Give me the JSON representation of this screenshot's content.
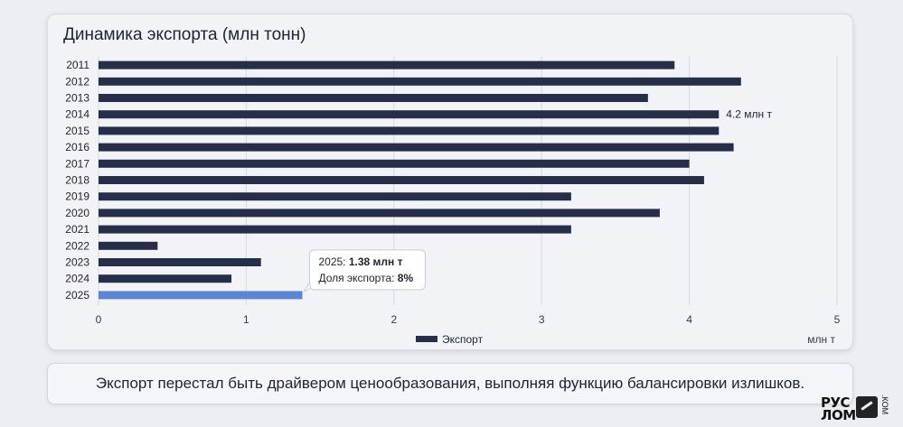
{
  "chart_data": {
    "type": "bar",
    "orientation": "horizontal",
    "title": "Динамика экспорта (млн тонн)",
    "categories": [
      "2011",
      "2012",
      "2013",
      "2014",
      "2015",
      "2016",
      "2017",
      "2018",
      "2019",
      "2020",
      "2021",
      "2022",
      "2023",
      "2024",
      "2025"
    ],
    "series": [
      {
        "name": "Экспорт",
        "values": [
          3.9,
          4.35,
          3.72,
          4.2,
          4.2,
          4.3,
          4.0,
          4.1,
          3.2,
          3.8,
          3.2,
          0.4,
          1.1,
          0.9,
          1.38
        ]
      }
    ],
    "xlim": [
      0,
      5
    ],
    "xticks": [
      "0",
      "1",
      "2",
      "3",
      "4",
      "5"
    ],
    "xunit": "млн т",
    "grid": true,
    "legend_position": "bottom-center",
    "highlight_index": 14,
    "data_label": {
      "category": "2014",
      "text": "4.2 млн т"
    },
    "tooltip": {
      "category": "2025",
      "line1_prefix": "2025: ",
      "line1_value": "1.38 млн т",
      "line2_prefix": "Доля экспорта: ",
      "line2_value": "8%"
    },
    "colors": {
      "bar": "#262f4a",
      "highlight": "#5b86d6",
      "grid": "#d4d8e0"
    }
  },
  "footer_note": "Экспорт перестал быть драйвером ценообразования, выполняя функцию балансировки излишков.",
  "logo": {
    "line1": "РУС",
    "line2": "ЛОМ",
    "suffix": ".КОМ"
  }
}
